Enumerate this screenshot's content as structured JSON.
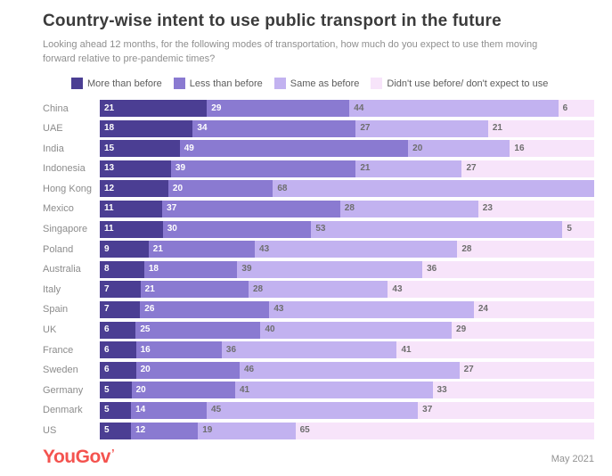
{
  "header": {
    "title": "Country-wise intent to use public transport in the future",
    "subtitle": "Looking ahead 12 months, for the following modes of transportation, how much do you expect to use them moving forward relative to pre-pandemic times?"
  },
  "colors": {
    "more_than_before": "#4b3e93",
    "less_than_before": "#8a7ad1",
    "same_as_before": "#c2b2f0",
    "didnt_use_before": "#f7e4fa",
    "value_on_dark": "#ffffff",
    "value_on_light": "#6e6e6e",
    "logo": "#f4534f"
  },
  "chart_data": {
    "type": "bar",
    "orientation": "horizontal",
    "stacked": true,
    "grid": false,
    "legend_position": "top",
    "xlim": [
      0,
      100
    ],
    "title": "Country-wise intent to use public transport in the future",
    "xlabel": "",
    "ylabel": "",
    "categories": [
      "China",
      "UAE",
      "India",
      "Indonesia",
      "Hong Kong",
      "Mexico",
      "Singapore",
      "Poland",
      "Australia",
      "Italy",
      "Spain",
      "UK",
      "France",
      "Sweden",
      "Germany",
      "Denmark",
      "US"
    ],
    "series": [
      {
        "name": "More than before",
        "slug": "more-than-before",
        "color": "#4b3e93",
        "values": [
          21,
          18,
          15,
          13,
          12,
          11,
          11,
          9,
          8,
          7,
          7,
          6,
          6,
          6,
          5,
          5,
          5
        ]
      },
      {
        "name": "Less than before",
        "slug": "less-than-before",
        "color": "#8a7ad1",
        "values": [
          29,
          34,
          49,
          39,
          20,
          37,
          30,
          21,
          18,
          21,
          26,
          25,
          16,
          20,
          20,
          14,
          12
        ]
      },
      {
        "name": "Same as before",
        "slug": "same-as-before",
        "color": "#c2b2f0",
        "values": [
          44,
          27,
          20,
          21,
          68,
          28,
          53,
          43,
          39,
          28,
          43,
          40,
          36,
          46,
          41,
          45,
          19
        ]
      },
      {
        "name": "Didn't use before/ don't expect to use",
        "slug": "didnt-use-before",
        "color": "#f7e4fa",
        "values": [
          6,
          21,
          16,
          27,
          0,
          23,
          5,
          28,
          36,
          43,
          24,
          29,
          41,
          27,
          33,
          37,
          65
        ]
      }
    ]
  },
  "footer": {
    "logo_text": "YouGov",
    "date": "May 2021"
  }
}
